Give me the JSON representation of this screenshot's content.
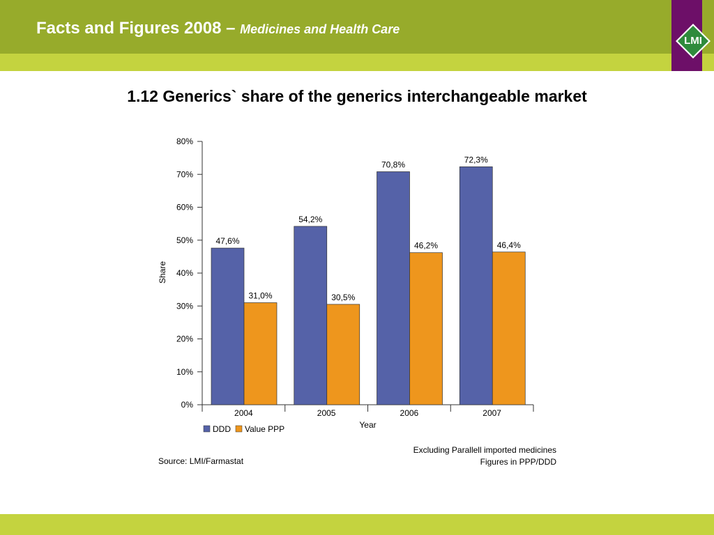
{
  "header": {
    "title": "Facts and Figures 2008 –",
    "subtitle": "Medicines and Health Care",
    "logo_text": "LMI"
  },
  "colors": {
    "header_band": "#97ab2b",
    "sub_band": "#c4d33f",
    "logo_box": "#6d0f68",
    "logo_diamond": "#2e8b3c"
  },
  "chart_data": {
    "type": "bar",
    "title": "1.12 Generics` share of the generics interchangeable market",
    "categories": [
      "2004",
      "2005",
      "2006",
      "2007"
    ],
    "series": [
      {
        "name": "DDD",
        "values": [
          47.6,
          54.2,
          70.8,
          72.3
        ],
        "labels": [
          "47,6%",
          "54,2%",
          "70,8%",
          "72,3%"
        ],
        "color": "#5562a8"
      },
      {
        "name": "Value PPP",
        "values": [
          31.0,
          30.5,
          46.2,
          46.4
        ],
        "labels": [
          "31,0%",
          "30,5%",
          "46,2%",
          "46,4%"
        ],
        "color": "#ee961d"
      }
    ],
    "xlabel": "Year",
    "ylabel": "Share",
    "ylim": [
      0,
      80
    ],
    "yticks": [
      "0%",
      "10%",
      "20%",
      "30%",
      "40%",
      "50%",
      "60%",
      "70%",
      "80%"
    ],
    "legend_position": "bottom-left",
    "grid": false
  },
  "notes": {
    "source": "Source: LMI/Farmastat",
    "exclusion": "Excluding Parallell imported medicines",
    "figures": "Figures in PPP/DDD"
  }
}
